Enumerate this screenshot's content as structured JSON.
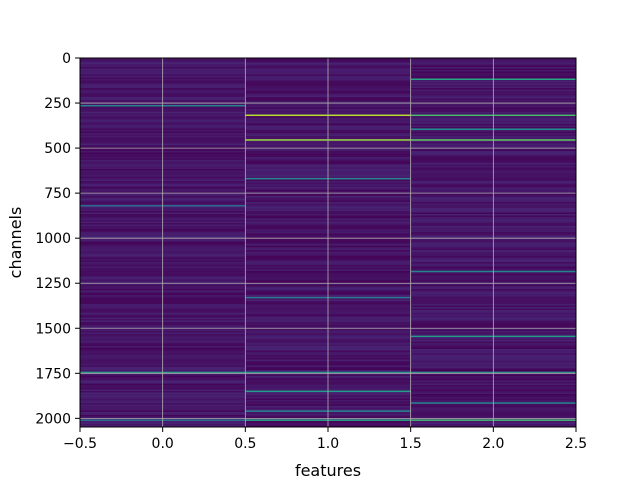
{
  "chart_data": {
    "type": "heatmap",
    "title": "",
    "xlabel": "features",
    "ylabel": "channels",
    "xlim": [
      -0.5,
      2.5
    ],
    "ylim": [
      2048,
      0
    ],
    "xticks": [
      -0.5,
      0.0,
      0.5,
      1.0,
      1.5,
      2.0,
      2.5
    ],
    "xtick_labels": [
      "−0.5",
      "0.0",
      "0.5",
      "1.0",
      "1.5",
      "2.0",
      "2.5"
    ],
    "yticks": [
      0,
      250,
      500,
      750,
      1000,
      1250,
      1500,
      1750,
      2000
    ],
    "ytick_labels": [
      "0",
      "250",
      "500",
      "750",
      "1000",
      "1250",
      "1500",
      "1750",
      "2000"
    ],
    "grid": true,
    "colormap": "viridis",
    "columns": [
      0,
      1,
      2
    ],
    "rows": 2048,
    "background_level": 0.06,
    "highlights": [
      {
        "column": 0,
        "channel": 265,
        "value": 0.45
      },
      {
        "column": 0,
        "channel": 820,
        "value": 0.35
      },
      {
        "column": 0,
        "channel": 1745,
        "value": 0.55
      },
      {
        "column": 0,
        "channel": 2010,
        "value": 0.4
      },
      {
        "column": 1,
        "channel": 318,
        "value": 0.9
      },
      {
        "column": 1,
        "channel": 455,
        "value": 0.85
      },
      {
        "column": 1,
        "channel": 670,
        "value": 0.45
      },
      {
        "column": 1,
        "channel": 1330,
        "value": 0.4
      },
      {
        "column": 1,
        "channel": 1745,
        "value": 0.5
      },
      {
        "column": 1,
        "channel": 1850,
        "value": 0.55
      },
      {
        "column": 1,
        "channel": 1960,
        "value": 0.45
      },
      {
        "column": 1,
        "channel": 2010,
        "value": 0.6
      },
      {
        "column": 2,
        "channel": 118,
        "value": 0.6
      },
      {
        "column": 2,
        "channel": 318,
        "value": 0.7
      },
      {
        "column": 2,
        "channel": 395,
        "value": 0.5
      },
      {
        "column": 2,
        "channel": 455,
        "value": 0.75
      },
      {
        "column": 2,
        "channel": 1185,
        "value": 0.45
      },
      {
        "column": 2,
        "channel": 1545,
        "value": 0.55
      },
      {
        "column": 2,
        "channel": 1745,
        "value": 0.5
      },
      {
        "column": 2,
        "channel": 1915,
        "value": 0.45
      },
      {
        "column": 2,
        "channel": 2010,
        "value": 0.7
      }
    ]
  }
}
